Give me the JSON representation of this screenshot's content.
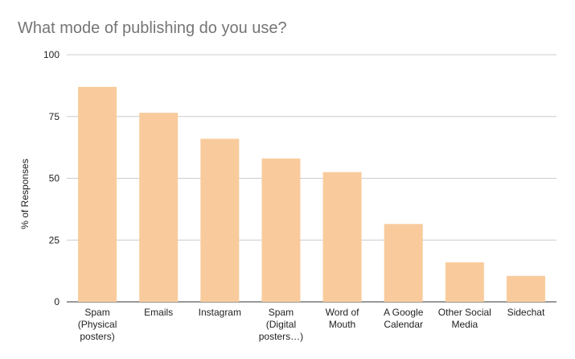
{
  "chart_data": {
    "type": "bar",
    "title": "What mode of publishing do you use?",
    "xlabel": "",
    "ylabel": "% of Responses",
    "ylim": [
      0,
      100
    ],
    "yticks": [
      0,
      25,
      50,
      75,
      100
    ],
    "grid": true,
    "legend": "none",
    "bar_color": "#f9cb9c",
    "categories": [
      [
        "Spam",
        "(Physical",
        "posters)"
      ],
      [
        "Emails"
      ],
      [
        "Instagram"
      ],
      [
        "Spam",
        "(Digital",
        "posters…)"
      ],
      [
        "Word of",
        "Mouth"
      ],
      [
        "A Google",
        "Calendar"
      ],
      [
        "Other Social",
        "Media"
      ],
      [
        "Sidechat"
      ]
    ],
    "values": [
      87,
      76.5,
      66,
      58,
      52.5,
      31.5,
      16,
      10.5
    ]
  }
}
